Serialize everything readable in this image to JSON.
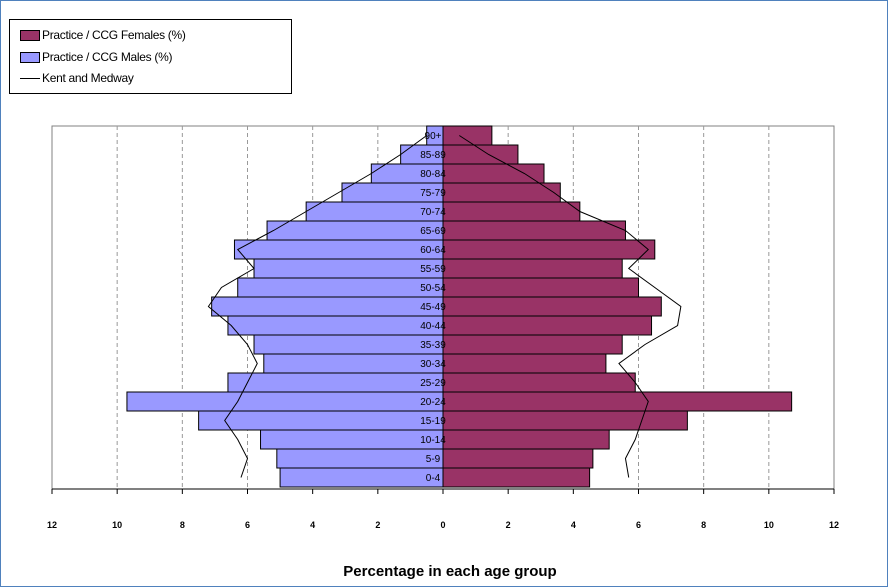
{
  "colors": {
    "females": "#993366",
    "males": "#9999ff",
    "reference_line": "#000000",
    "frame_border": "#4f81bd"
  },
  "chart_data": {
    "type": "bar",
    "subtype": "population-pyramid",
    "categories": [
      "0-4",
      "5-9",
      "10-14",
      "15-19",
      "20-24",
      "25-29",
      "30-34",
      "35-39",
      "40-44",
      "45-49",
      "50-54",
      "55-59",
      "60-64",
      "65-69",
      "70-74",
      "75-79",
      "80-84",
      "85-89",
      "90+"
    ],
    "series": [
      {
        "name": "Practice / CCG Females (%)",
        "side": "right",
        "values": [
          4.5,
          4.6,
          5.1,
          7.5,
          10.7,
          5.9,
          5.0,
          5.5,
          6.4,
          6.7,
          6.0,
          5.5,
          6.5,
          5.6,
          4.2,
          3.6,
          3.1,
          2.3,
          1.5
        ]
      },
      {
        "name": "Practice / CCG Males (%)",
        "side": "left",
        "values": [
          5.0,
          5.1,
          5.6,
          7.5,
          9.7,
          6.6,
          5.5,
          5.8,
          6.6,
          7.1,
          6.3,
          5.8,
          6.4,
          5.4,
          4.2,
          3.1,
          2.2,
          1.3,
          0.5
        ]
      },
      {
        "name": "Kent and Medway",
        "type": "line",
        "male_values": [
          6.2,
          6.0,
          6.3,
          6.7,
          6.3,
          6.0,
          5.7,
          6.0,
          6.5,
          7.2,
          6.8,
          5.8,
          6.3,
          5.2,
          4.2,
          3.2,
          2.2,
          1.3,
          0.5
        ],
        "female_values": [
          5.7,
          5.6,
          5.9,
          6.1,
          6.3,
          5.9,
          5.4,
          6.2,
          7.2,
          7.3,
          6.5,
          5.7,
          6.3,
          5.6,
          4.2,
          3.4,
          2.5,
          1.4,
          0.5
        ]
      }
    ],
    "xlabel": "Percentage in each age group",
    "xlim": [
      -12,
      12
    ],
    "x_ticks": [
      -12,
      -10,
      -8,
      -6,
      -4,
      -2,
      0,
      2,
      4,
      6,
      8,
      10,
      12
    ],
    "x_tick_labels": [
      "12",
      "10",
      "8",
      "6",
      "4",
      "2",
      "0",
      "2",
      "4",
      "6",
      "8",
      "10",
      "12"
    ],
    "grid": "vertical dashed",
    "legend_position": "top-left"
  }
}
